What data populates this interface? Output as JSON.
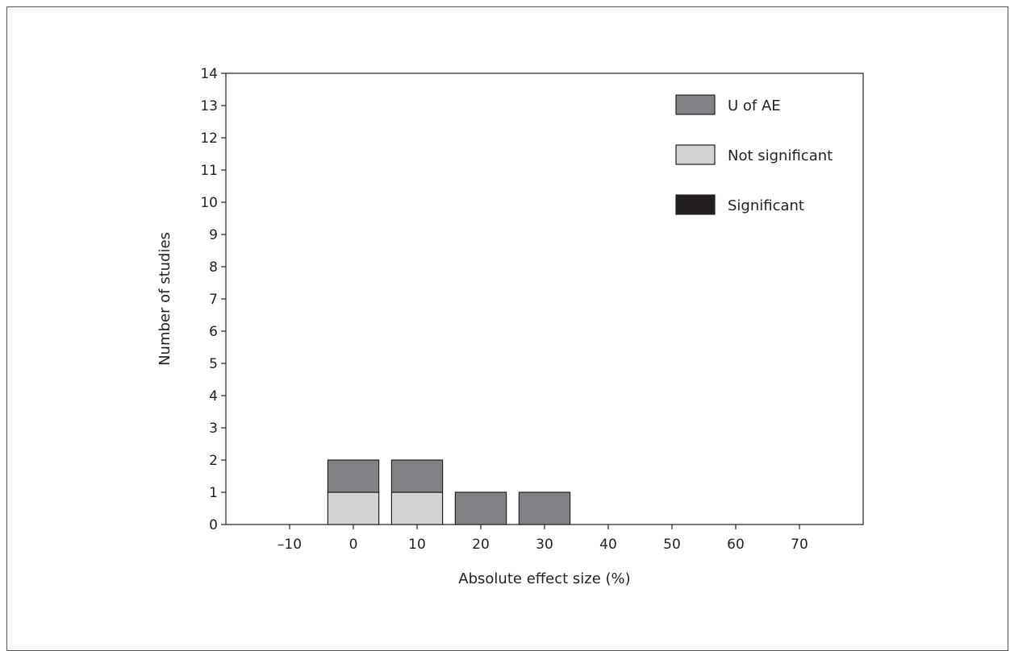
{
  "chart_data": {
    "type": "bar",
    "stacked": true,
    "xlabel": "Absolute effect size (%)",
    "ylabel": "Number of studies",
    "x_ticks": [
      -10,
      0,
      10,
      20,
      30,
      40,
      50,
      60,
      70
    ],
    "x_tick_labels": [
      "–10",
      "0",
      "10",
      "20",
      "30",
      "40",
      "50",
      "60",
      "70"
    ],
    "xlim": [
      -20,
      80
    ],
    "ylim": [
      0,
      14
    ],
    "y_ticks": [
      0,
      1,
      2,
      3,
      4,
      5,
      6,
      7,
      8,
      9,
      10,
      11,
      12,
      13,
      14
    ],
    "y_tick_labels": [
      "0",
      "1",
      "2",
      "3",
      "4",
      "5",
      "6",
      "7",
      "8",
      "9",
      "10",
      "11",
      "12",
      "13",
      "14"
    ],
    "bin_centers": [
      0,
      10,
      20,
      30
    ],
    "bin_width": 8,
    "series": [
      {
        "name": "Significant",
        "color": "#231f20",
        "values": [
          0,
          0,
          0,
          0
        ]
      },
      {
        "name": "Not significant",
        "color": "#d2d3d5",
        "values": [
          1,
          1,
          0,
          0
        ]
      },
      {
        "name": "U of AE",
        "color": "#808285",
        "values": [
          1,
          1,
          1,
          1
        ]
      }
    ],
    "legend_order": [
      "U of AE",
      "Not significant",
      "Significant"
    ],
    "legend_position": "top-right",
    "grid": false
  }
}
